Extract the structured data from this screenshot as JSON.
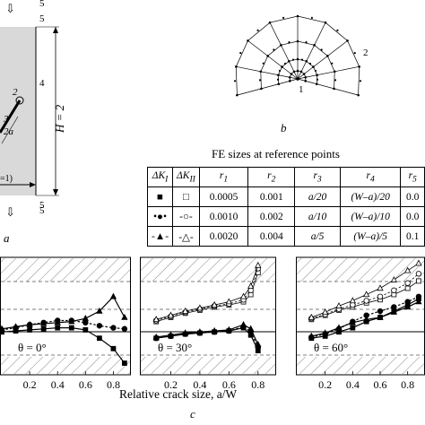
{
  "panel_a": {
    "label": "a",
    "numbers": [
      "5",
      "5",
      "4",
      "2",
      "3",
      "5",
      "5"
    ],
    "dim_h": "H = 2",
    "dim_a": "2a",
    "load_text": "=1)"
  },
  "panel_b": {
    "label": "b",
    "points": [
      "1",
      "2"
    ]
  },
  "table": {
    "title": "FE sizes at reference points",
    "headers": [
      "ΔK",
      "ΔK",
      "r",
      "r",
      "r",
      "r",
      "r"
    ],
    "header_subs": [
      "I",
      "II",
      "1",
      "2",
      "3",
      "4",
      "5"
    ],
    "rows": [
      {
        "r1": "0.0005",
        "r2": "0.001",
        "r3": "a/20",
        "r4": "(W–a)/20",
        "r5": "0.0"
      },
      {
        "r1": "0.0010",
        "r2": "0.002",
        "r3": "a/10",
        "r4": "(W–a)/10",
        "r5": "0.0"
      },
      {
        "r1": "0.0020",
        "r2": "0.004",
        "r3": "a/5",
        "r4": "(W–a)/5",
        "r5": "0.1"
      }
    ]
  },
  "panel_c": {
    "label": "c",
    "xlabel": "Relative crack size, a/W",
    "x_ticks_left": [
      "0.2",
      "0.4",
      "0.6",
      "0.8"
    ],
    "x_ticks_mid": [
      "0.2",
      "0.4",
      "0.6",
      "0.8"
    ],
    "x_ticks_right": [
      "0.2",
      "0.4",
      "0.6",
      "0.8"
    ],
    "theta_labels": [
      "θ = 0°",
      "θ = 30°",
      "θ = 60°"
    ]
  },
  "chart_data": [
    {
      "type": "line",
      "annotations": [
        "θ = 0°"
      ],
      "xlim": [
        0.0,
        0.9
      ],
      "series": [
        {
          "marker": "square-filled",
          "x": [
            0.0,
            0.1,
            0.2,
            0.3,
            0.4,
            0.5,
            0.6,
            0.7,
            0.8,
            0.88
          ],
          "values": [
            0.36,
            0.37,
            0.38,
            0.39,
            0.4,
            0.4,
            0.38,
            0.3,
            0.2,
            0.06
          ]
        },
        {
          "marker": "circle-filled",
          "x": [
            0.0,
            0.1,
            0.2,
            0.3,
            0.4,
            0.5,
            0.6,
            0.7,
            0.8,
            0.88
          ],
          "values": [
            0.38,
            0.4,
            0.43,
            0.45,
            0.47,
            0.47,
            0.45,
            0.42,
            0.4,
            0.39
          ]
        },
        {
          "marker": "triangle-filled",
          "x": [
            0.0,
            0.1,
            0.2,
            0.3,
            0.4,
            0.5,
            0.6,
            0.7,
            0.8,
            0.88
          ],
          "values": [
            0.39,
            0.41,
            0.43,
            0.44,
            0.45,
            0.46,
            0.49,
            0.56,
            0.7,
            0.5
          ]
        }
      ]
    },
    {
      "type": "line",
      "annotations": [
        "θ = 30°"
      ],
      "xlim": [
        0.0,
        0.9
      ],
      "series": [
        {
          "marker": "square-open",
          "x": [
            0.1,
            0.2,
            0.3,
            0.4,
            0.5,
            0.6,
            0.7,
            0.75,
            0.8
          ],
          "values": [
            0.46,
            0.5,
            0.54,
            0.57,
            0.6,
            0.62,
            0.65,
            0.72,
            0.93
          ]
        },
        {
          "marker": "circle-open",
          "x": [
            0.1,
            0.2,
            0.3,
            0.4,
            0.5,
            0.6,
            0.7,
            0.75,
            0.8
          ],
          "values": [
            0.47,
            0.51,
            0.55,
            0.58,
            0.61,
            0.63,
            0.67,
            0.76,
            0.97
          ]
        },
        {
          "marker": "triangle-open",
          "x": [
            0.1,
            0.2,
            0.3,
            0.4,
            0.5,
            0.6,
            0.7,
            0.75,
            0.8
          ],
          "values": [
            0.48,
            0.52,
            0.56,
            0.59,
            0.62,
            0.65,
            0.7,
            0.8,
            1.0
          ]
        },
        {
          "marker": "square-filled",
          "x": [
            0.1,
            0.2,
            0.3,
            0.4,
            0.5,
            0.6,
            0.7,
            0.75,
            0.8
          ],
          "values": [
            0.3,
            0.32,
            0.34,
            0.35,
            0.36,
            0.37,
            0.4,
            0.33,
            0.18
          ]
        },
        {
          "marker": "circle-filled",
          "x": [
            0.1,
            0.2,
            0.3,
            0.4,
            0.5,
            0.6,
            0.7,
            0.75,
            0.8
          ],
          "values": [
            0.3,
            0.32,
            0.34,
            0.35,
            0.36,
            0.37,
            0.41,
            0.36,
            0.21
          ]
        },
        {
          "marker": "triangle-filled",
          "x": [
            0.1,
            0.2,
            0.3,
            0.4,
            0.5,
            0.6,
            0.7,
            0.75,
            0.8
          ],
          "values": [
            0.31,
            0.33,
            0.35,
            0.36,
            0.37,
            0.38,
            0.43,
            0.39,
            0.24
          ]
        }
      ]
    },
    {
      "type": "line",
      "annotations": [
        "θ = 60°"
      ],
      "xlim": [
        0.0,
        0.9
      ],
      "series": [
        {
          "marker": "square-open",
          "x": [
            0.1,
            0.2,
            0.3,
            0.4,
            0.5,
            0.6,
            0.7,
            0.8,
            0.88
          ],
          "values": [
            0.48,
            0.52,
            0.57,
            0.6,
            0.64,
            0.67,
            0.72,
            0.78,
            0.85
          ]
        },
        {
          "marker": "circle-open",
          "x": [
            0.1,
            0.2,
            0.3,
            0.4,
            0.5,
            0.6,
            0.7,
            0.8,
            0.88
          ],
          "values": [
            0.49,
            0.53,
            0.58,
            0.62,
            0.66,
            0.7,
            0.76,
            0.83,
            0.92
          ]
        },
        {
          "marker": "triangle-open",
          "x": [
            0.1,
            0.2,
            0.3,
            0.4,
            0.5,
            0.6,
            0.7,
            0.8,
            0.88
          ],
          "values": [
            0.5,
            0.55,
            0.61,
            0.66,
            0.72,
            0.78,
            0.86,
            0.95,
            1.02
          ]
        },
        {
          "marker": "square-filled",
          "x": [
            0.1,
            0.2,
            0.3,
            0.4,
            0.5,
            0.6,
            0.7,
            0.8,
            0.88
          ],
          "values": [
            0.3,
            0.32,
            0.36,
            0.4,
            0.46,
            0.5,
            0.56,
            0.62,
            0.68
          ]
        },
        {
          "marker": "circle-filled",
          "x": [
            0.1,
            0.2,
            0.3,
            0.4,
            0.5,
            0.6,
            0.7,
            0.8,
            0.88
          ],
          "values": [
            0.31,
            0.34,
            0.39,
            0.46,
            0.52,
            0.56,
            0.6,
            0.65,
            0.7
          ]
        },
        {
          "marker": "triangle-filled",
          "x": [
            0.1,
            0.2,
            0.3,
            0.4,
            0.5,
            0.6,
            0.7,
            0.8,
            0.88
          ],
          "values": [
            0.32,
            0.35,
            0.4,
            0.45,
            0.48,
            0.5,
            0.55,
            0.6,
            0.65
          ]
        }
      ]
    }
  ]
}
